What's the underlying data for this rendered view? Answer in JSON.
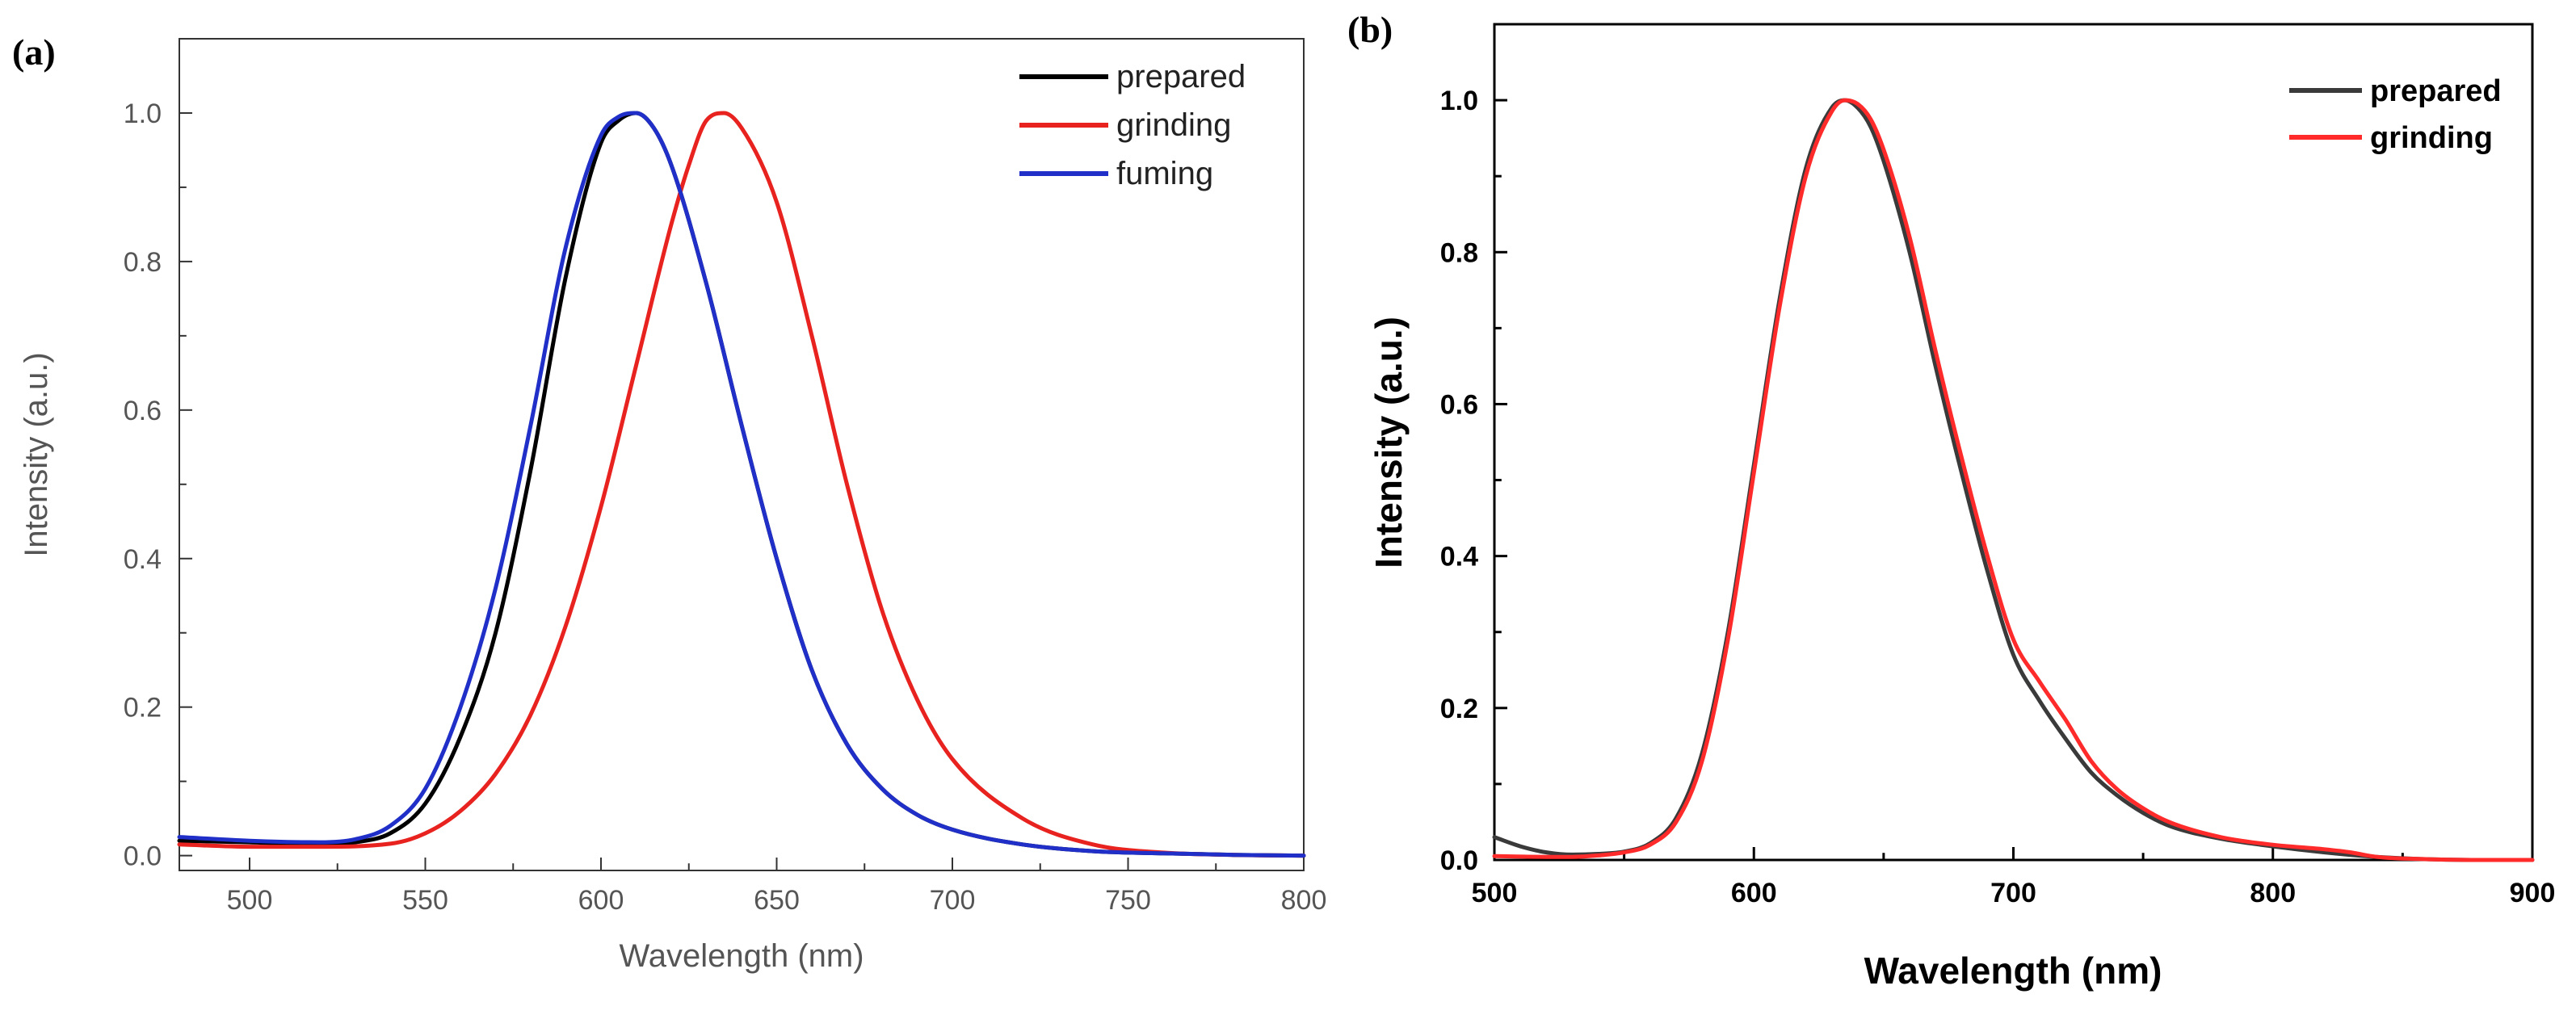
{
  "chart_data": [
    {
      "panel": "(a)",
      "type": "line",
      "title": "",
      "xlabel": "Wavelength (nm)",
      "ylabel": "Intensity (a.u.)",
      "xlim": [
        480,
        800
      ],
      "ylim": [
        -0.02,
        1.1
      ],
      "xticks": [
        500,
        550,
        600,
        650,
        700,
        750,
        800
      ],
      "yticks": [
        0.0,
        0.2,
        0.4,
        0.6,
        0.8,
        1.0
      ],
      "ytick_labels": [
        "0.0",
        "0.2",
        "0.4",
        "0.6",
        "0.8",
        "1.0"
      ],
      "legend_position": "top-right",
      "series": [
        {
          "name": "prepared",
          "color": "#000000",
          "x": [
            480,
            500,
            520,
            530,
            540,
            550,
            560,
            570,
            580,
            590,
            600,
            605,
            610,
            615,
            620,
            630,
            640,
            650,
            660,
            670,
            680,
            690,
            700,
            720,
            740,
            760,
            780,
            800
          ],
          "y": [
            0.02,
            0.018,
            0.015,
            0.018,
            0.03,
            0.07,
            0.16,
            0.3,
            0.52,
            0.78,
            0.96,
            0.99,
            1.0,
            0.98,
            0.93,
            0.77,
            0.58,
            0.4,
            0.25,
            0.15,
            0.09,
            0.055,
            0.035,
            0.015,
            0.006,
            0.003,
            0.001,
            0.0
          ]
        },
        {
          "name": "grinding",
          "color": "#e8231f",
          "x": [
            480,
            500,
            520,
            540,
            550,
            560,
            570,
            580,
            590,
            600,
            610,
            620,
            625,
            630,
            635,
            640,
            650,
            660,
            670,
            680,
            690,
            700,
            720,
            740,
            760,
            780,
            800
          ],
          "y": [
            0.015,
            0.012,
            0.012,
            0.016,
            0.03,
            0.06,
            0.11,
            0.19,
            0.31,
            0.47,
            0.66,
            0.85,
            0.93,
            0.99,
            1.0,
            0.98,
            0.88,
            0.7,
            0.5,
            0.33,
            0.21,
            0.13,
            0.05,
            0.015,
            0.004,
            0.001,
            0.0
          ]
        },
        {
          "name": "fuming",
          "color": "#1f2fc8",
          "x": [
            480,
            500,
            520,
            530,
            540,
            550,
            560,
            570,
            580,
            590,
            600,
            605,
            610,
            615,
            620,
            630,
            640,
            650,
            660,
            670,
            680,
            690,
            700,
            720,
            740,
            760,
            780,
            800
          ],
          "y": [
            0.025,
            0.02,
            0.018,
            0.022,
            0.04,
            0.09,
            0.2,
            0.36,
            0.58,
            0.82,
            0.97,
            0.995,
            1.0,
            0.98,
            0.93,
            0.77,
            0.58,
            0.4,
            0.25,
            0.15,
            0.09,
            0.055,
            0.035,
            0.015,
            0.006,
            0.003,
            0.001,
            0.0
          ]
        }
      ]
    },
    {
      "panel": "(b)",
      "type": "line",
      "title": "",
      "xlabel": "Wavelength (nm)",
      "ylabel": "Intensity (a.u.)",
      "xlim": [
        500,
        900
      ],
      "ylim": [
        0.0,
        1.1
      ],
      "xticks": [
        500,
        600,
        700,
        800,
        900
      ],
      "yticks": [
        0.0,
        0.2,
        0.4,
        0.6,
        0.8,
        1.0
      ],
      "ytick_labels": [
        "0.0",
        "0.2",
        "0.4",
        "0.6",
        "0.8",
        "1.0"
      ],
      "legend_position": "top-right",
      "series": [
        {
          "name": "prepared",
          "color": "#3a3a3a",
          "x": [
            500,
            510,
            520,
            530,
            540,
            550,
            560,
            570,
            580,
            590,
            600,
            610,
            620,
            630,
            635,
            640,
            645,
            650,
            660,
            670,
            680,
            690,
            700,
            710,
            720,
            730,
            740,
            750,
            760,
            780,
            800,
            820,
            840,
            860,
            880,
            900
          ],
          "y": [
            0.03,
            0.018,
            0.01,
            0.007,
            0.008,
            0.011,
            0.022,
            0.055,
            0.14,
            0.3,
            0.52,
            0.74,
            0.91,
            0.99,
            1.0,
            0.99,
            0.965,
            0.92,
            0.8,
            0.65,
            0.51,
            0.38,
            0.27,
            0.21,
            0.16,
            0.115,
            0.085,
            0.062,
            0.045,
            0.028,
            0.018,
            0.01,
            0.004,
            0.001,
            0.0,
            0.0
          ]
        },
        {
          "name": "grinding",
          "color": "#ff2a2a",
          "x": [
            500,
            520,
            530,
            540,
            550,
            560,
            570,
            580,
            590,
            600,
            610,
            620,
            630,
            635,
            640,
            645,
            650,
            660,
            670,
            680,
            690,
            700,
            710,
            720,
            730,
            740,
            750,
            760,
            780,
            800,
            820,
            830,
            840,
            860,
            880,
            900
          ],
          "y": [
            0.005,
            0.004,
            0.004,
            0.006,
            0.01,
            0.02,
            0.05,
            0.13,
            0.29,
            0.51,
            0.73,
            0.9,
            0.985,
            1.0,
            0.995,
            0.975,
            0.935,
            0.82,
            0.67,
            0.53,
            0.4,
            0.29,
            0.235,
            0.185,
            0.13,
            0.093,
            0.068,
            0.05,
            0.03,
            0.02,
            0.014,
            0.01,
            0.004,
            0.001,
            0.0,
            0.0
          ]
        }
      ]
    }
  ]
}
